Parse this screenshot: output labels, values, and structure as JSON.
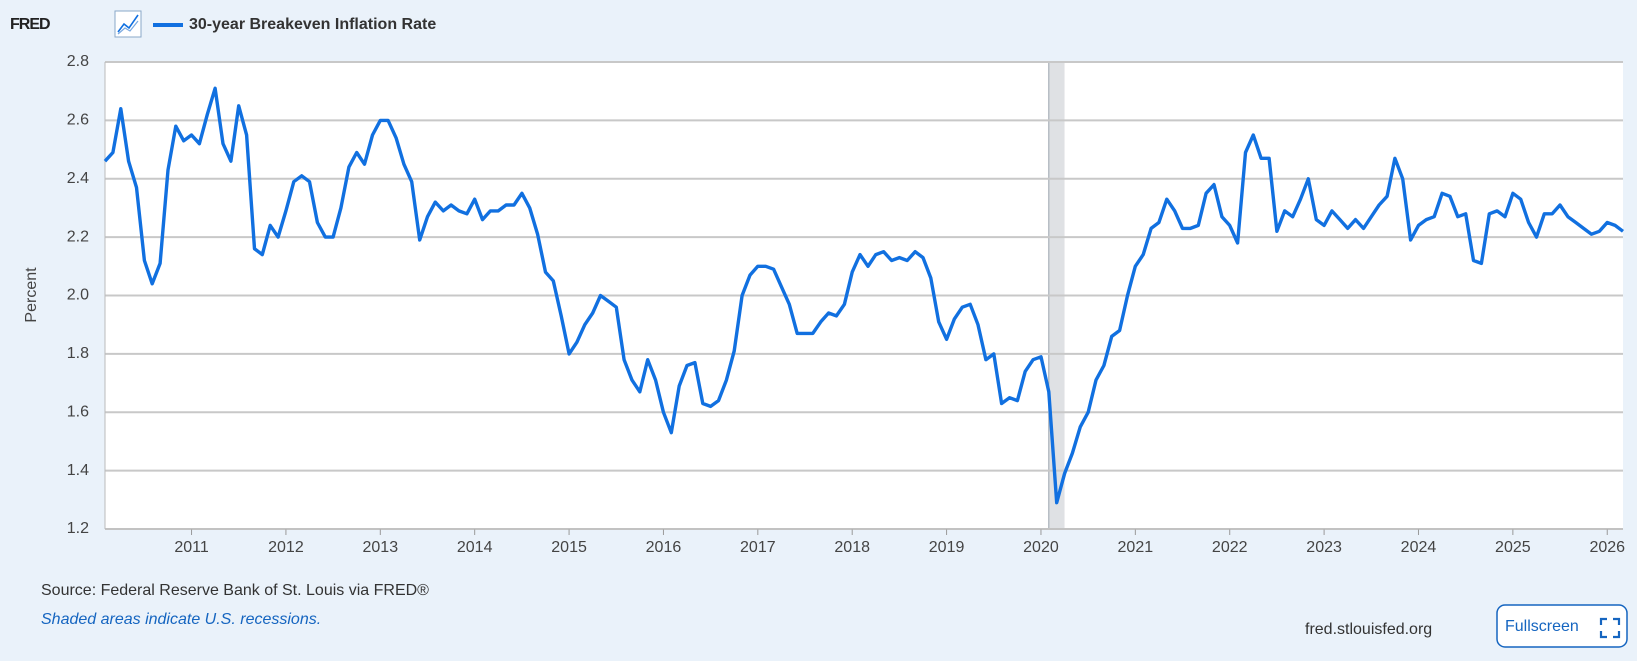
{
  "header": {
    "logo": "FRED"
  },
  "chart_data": {
    "type": "line",
    "ylabel": "Percent",
    "series": [
      {
        "name": "30-year Breakeven Inflation Rate",
        "color": "#1170e0",
        "values": [
          2.46,
          2.49,
          2.64,
          2.46,
          2.37,
          2.12,
          2.04,
          2.11,
          2.43,
          2.58,
          2.53,
          2.55,
          2.52,
          2.62,
          2.71,
          2.52,
          2.46,
          2.65,
          2.55,
          2.16,
          2.14,
          2.24,
          2.2,
          2.29,
          2.39,
          2.41,
          2.39,
          2.25,
          2.2,
          2.2,
          2.3,
          2.44,
          2.49,
          2.45,
          2.55,
          2.6,
          2.6,
          2.54,
          2.45,
          2.39,
          2.19,
          2.27,
          2.32,
          2.29,
          2.31,
          2.29,
          2.28,
          2.33,
          2.26,
          2.29,
          2.29,
          2.31,
          2.31,
          2.35,
          2.3,
          2.21,
          2.08,
          2.05,
          1.93,
          1.8,
          1.84,
          1.9,
          1.94,
          2.0,
          1.98,
          1.96,
          1.78,
          1.71,
          1.67,
          1.78,
          1.71,
          1.6,
          1.53,
          1.69,
          1.76,
          1.77,
          1.63,
          1.62,
          1.64,
          1.71,
          1.81,
          2.0,
          2.07,
          2.1,
          2.1,
          2.09,
          2.03,
          1.97,
          1.87,
          1.87,
          1.87,
          1.91,
          1.94,
          1.93,
          1.97,
          2.08,
          2.14,
          2.1,
          2.14,
          2.15,
          2.12,
          2.13,
          2.12,
          2.15,
          2.13,
          2.06,
          1.91,
          1.85,
          1.92,
          1.96,
          1.97,
          1.9,
          1.78,
          1.8,
          1.63,
          1.65,
          1.64,
          1.74,
          1.78,
          1.79,
          1.67,
          1.29,
          1.39,
          1.46,
          1.55,
          1.6,
          1.71,
          1.76,
          1.86,
          1.88,
          2.0,
          2.1,
          2.14,
          2.23,
          2.25,
          2.33,
          2.29,
          2.23,
          2.23,
          2.24,
          2.35,
          2.38,
          2.27,
          2.24,
          2.18,
          2.49,
          2.55,
          2.47,
          2.47,
          2.22,
          2.29,
          2.27,
          2.33,
          2.4,
          2.26,
          2.24,
          2.29,
          2.26,
          2.23,
          2.26,
          2.23,
          2.27,
          2.31,
          2.34,
          2.47,
          2.4,
          2.19,
          2.24,
          2.26,
          2.27,
          2.35,
          2.34,
          2.27,
          2.28,
          2.12,
          2.11,
          2.28,
          2.29,
          2.27,
          2.35,
          2.33,
          2.25,
          2.2,
          2.28,
          2.28,
          2.31,
          2.27,
          2.25,
          2.23,
          2.21,
          2.22,
          2.25,
          2.24,
          2.22
        ]
      }
    ],
    "x": [
      2010.083,
      2010.167,
      2010.25,
      2010.333,
      2010.417,
      2010.5,
      2010.583,
      2010.667,
      2010.75,
      2010.833,
      2010.917,
      2011,
      2011.083,
      2011.167,
      2011.25,
      2011.333,
      2011.417,
      2011.5,
      2011.583,
      2011.667,
      2011.75,
      2011.833,
      2011.917,
      2012,
      2012.083,
      2012.167,
      2012.25,
      2012.333,
      2012.417,
      2012.5,
      2012.583,
      2012.667,
      2012.75,
      2012.833,
      2012.917,
      2013,
      2013.083,
      2013.167,
      2013.25,
      2013.333,
      2013.417,
      2013.5,
      2013.583,
      2013.667,
      2013.75,
      2013.833,
      2013.917,
      2014,
      2014.083,
      2014.167,
      2014.25,
      2014.333,
      2014.417,
      2014.5,
      2014.583,
      2014.667,
      2014.75,
      2014.833,
      2014.917,
      2015,
      2015.083,
      2015.167,
      2015.25,
      2015.333,
      2015.417,
      2015.5,
      2015.583,
      2015.667,
      2015.75,
      2015.833,
      2015.917,
      2016,
      2016.083,
      2016.167,
      2016.25,
      2016.333,
      2016.417,
      2016.5,
      2016.583,
      2016.667,
      2016.75,
      2016.833,
      2016.917,
      2017,
      2017.083,
      2017.167,
      2017.25,
      2017.333,
      2017.417,
      2017.5,
      2017.583,
      2017.667,
      2017.75,
      2017.833,
      2017.917,
      2018,
      2018.083,
      2018.167,
      2018.25,
      2018.333,
      2018.417,
      2018.5,
      2018.583,
      2018.667,
      2018.75,
      2018.833,
      2018.917,
      2019,
      2019.083,
      2019.167,
      2019.25,
      2019.333,
      2019.417,
      2019.5,
      2019.583,
      2019.667,
      2019.75,
      2019.833,
      2019.917,
      2020,
      2020.083,
      2020.167,
      2020.25,
      2020.333,
      2020.417,
      2020.5,
      2020.583,
      2020.667,
      2020.75,
      2020.833,
      2020.917,
      2021,
      2021.083,
      2021.167,
      2021.25,
      2021.333,
      2021.417,
      2021.5,
      2021.583,
      2021.667,
      2021.75,
      2021.833,
      2021.917,
      2022,
      2022.083,
      2022.167,
      2022.25,
      2022.333,
      2022.417,
      2022.5,
      2022.583,
      2022.667,
      2022.75,
      2022.833,
      2022.917,
      2023,
      2023.083,
      2023.167,
      2023.25,
      2023.333,
      2023.417,
      2023.5,
      2023.583,
      2023.667,
      2023.75,
      2023.833,
      2023.917,
      2024,
      2024.083,
      2024.167,
      2024.25,
      2024.333,
      2024.417,
      2024.5,
      2024.583,
      2024.667,
      2024.75,
      2024.833,
      2024.917,
      2025,
      2025.083,
      2025.167,
      2025.25,
      2025.333,
      2025.417,
      2025.5,
      2025.583,
      2025.667,
      2025.75,
      2025.833,
      2025.917,
      2026,
      2026.083,
      2026.167
    ],
    "xlim": [
      2010.083,
      2026.167
    ],
    "xticks": [
      2011,
      2012,
      2013,
      2014,
      2015,
      2016,
      2017,
      2018,
      2019,
      2020,
      2021,
      2022,
      2023,
      2024,
      2025,
      2026
    ],
    "ylim": [
      1.2,
      2.8
    ],
    "yticks": [
      1.2,
      1.4,
      1.6,
      1.8,
      {
        "value": 2,
        "label": "2.0"
      },
      2.2,
      2.4,
      2.6,
      2.8
    ],
    "grid": true,
    "recessions": [
      {
        "start": 2020.083,
        "end": 2020.25,
        "color": "#dfe1e4"
      }
    ]
  },
  "footer": {
    "source": "Source: Federal Reserve Bank of St. Louis via FRED®",
    "note": "Shaded areas indicate U.S. recessions.",
    "site": "fred.stlouisfed.org",
    "button": "Fullscreen"
  }
}
